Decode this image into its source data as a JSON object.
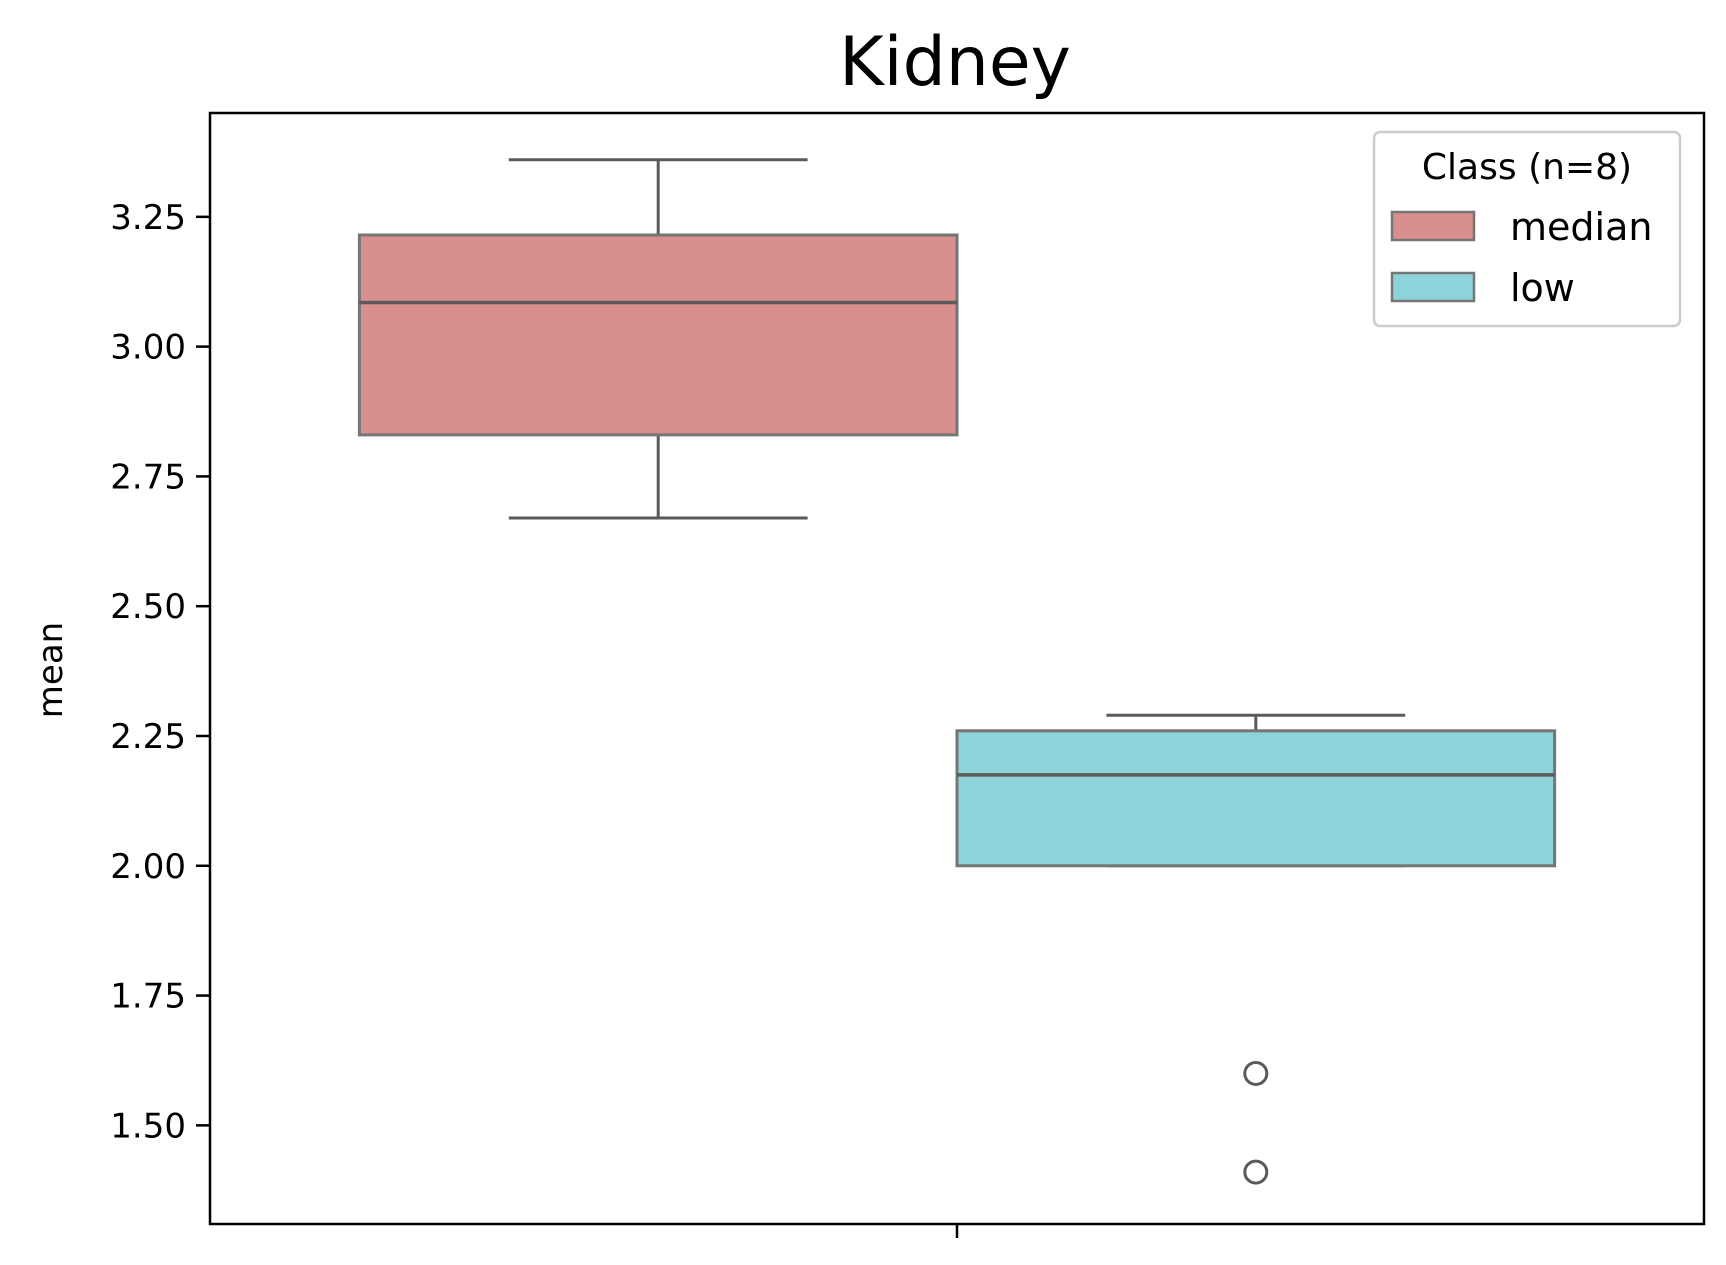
{
  "chart_data": {
    "type": "box",
    "title": "Kidney",
    "xlabel": "",
    "ylabel": "mean",
    "ylim": [
      1.31,
      3.45
    ],
    "yticks": [
      "1.50",
      "1.75",
      "2.00",
      "2.25",
      "2.50",
      "2.75",
      "3.00",
      "3.25"
    ],
    "legend": {
      "title": "Class (n=8)",
      "position": "top-right"
    },
    "series": [
      {
        "name": "median",
        "color": "#d8908e",
        "whisker_low": 2.67,
        "q1": 2.83,
        "median": 3.085,
        "q3": 3.215,
        "whisker_high": 3.36,
        "outliers": []
      },
      {
        "name": "low",
        "color": "#8dd3d9",
        "whisker_low": 2.0,
        "q1": 2.0,
        "median": 2.175,
        "q3": 2.26,
        "whisker_high": 2.29,
        "outliers": [
          1.6,
          1.41
        ]
      }
    ]
  }
}
